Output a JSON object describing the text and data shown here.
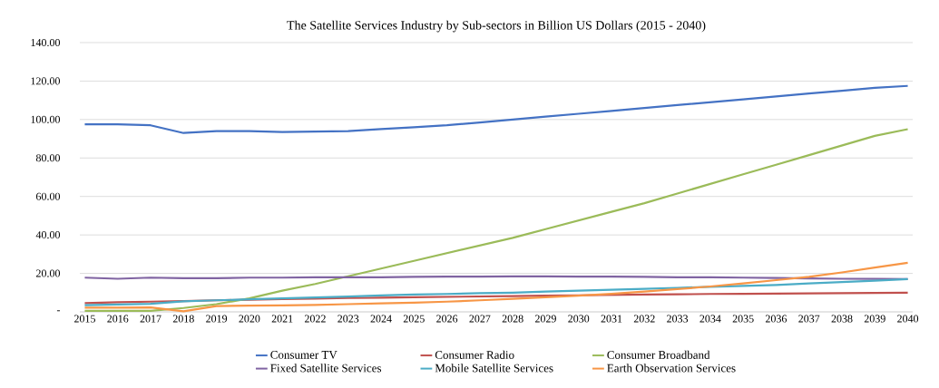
{
  "chart_data": {
    "type": "line",
    "title": "The Satellite Services Industry by Sub-sectors in Billion US Dollars (2015 - 2040)",
    "categories": [
      "2015",
      "2016",
      "2017",
      "2018",
      "2019",
      "2020",
      "2021",
      "2022",
      "2023",
      "2024",
      "2025",
      "2026",
      "2027",
      "2028",
      "2029",
      "2030",
      "2031",
      "2032",
      "2033",
      "2034",
      "2035",
      "2036",
      "2037",
      "2038",
      "2039",
      "2040"
    ],
    "series": [
      {
        "name": "Consumer TV",
        "color": "#4472c4",
        "values": [
          97.5,
          97.5,
          97,
          93,
          94,
          94,
          93.5,
          93.7,
          94,
          95,
          96,
          97,
          98.5,
          100,
          101.5,
          103,
          104.5,
          106,
          107.5,
          109,
          110.5,
          112,
          113.5,
          115,
          116.5,
          117.5
        ]
      },
      {
        "name": "Consumer Radio",
        "color": "#c0504d",
        "values": [
          4.5,
          5,
          5.3,
          5.6,
          6,
          6.3,
          6.6,
          6.9,
          7.2,
          7.4,
          7.6,
          7.8,
          8,
          8.2,
          8.4,
          8.6,
          8.8,
          9,
          9.1,
          9.3,
          9.4,
          9.5,
          9.6,
          9.7,
          9.8,
          10
        ]
      },
      {
        "name": "Consumer Broadband",
        "color": "#9bbb59",
        "values": [
          0.5,
          0.5,
          0.5,
          2,
          4,
          7,
          11,
          14.5,
          18.5,
          22.5,
          26.5,
          30.5,
          34.5,
          38.5,
          43,
          47.5,
          52,
          56.5,
          61.5,
          66.5,
          71.5,
          76.5,
          81.5,
          86.5,
          91.5,
          95
        ]
      },
      {
        "name": "Fixed Satellite Services",
        "color": "#8064a2",
        "values": [
          17.8,
          17.2,
          17.8,
          17.5,
          17.5,
          17.8,
          17.8,
          18,
          18,
          18,
          18.2,
          18.3,
          18.3,
          18.4,
          18.4,
          18.3,
          18.3,
          18.2,
          18,
          18,
          17.8,
          17.6,
          17.4,
          17.2,
          17.1,
          17
        ]
      },
      {
        "name": "Mobile Satellite Services",
        "color": "#4bacc6",
        "values": [
          3.5,
          3.8,
          4.2,
          5.5,
          6,
          6.5,
          7,
          7.5,
          8,
          8.5,
          9,
          9.3,
          9.7,
          10,
          10.5,
          11,
          11.5,
          12,
          12.5,
          13,
          13.5,
          14,
          14.8,
          15.5,
          16.2,
          17
        ]
      },
      {
        "name": "Earth Observation Services",
        "color": "#f79646",
        "values": [
          2.2,
          2.2,
          2.3,
          0.3,
          3,
          3.2,
          3.4,
          3.6,
          4,
          4.4,
          4.8,
          5.3,
          6,
          6.8,
          7.6,
          8.4,
          9.4,
          10.5,
          11.8,
          13.2,
          14.8,
          16.5,
          18.2,
          20.5,
          23,
          25.5
        ]
      }
    ],
    "ylim": [
      0,
      140
    ],
    "yticks": [
      {
        "value": 0,
        "label": "-"
      },
      {
        "value": 20,
        "label": "20.00"
      },
      {
        "value": 40,
        "label": "40.00"
      },
      {
        "value": 60,
        "label": "60.00"
      },
      {
        "value": 80,
        "label": "80.00"
      },
      {
        "value": 100,
        "label": "100.00"
      },
      {
        "value": 120,
        "label": "120.00"
      },
      {
        "value": 140,
        "label": "140.00"
      }
    ],
    "grid": "y",
    "legend": "bottom",
    "marker": "none",
    "line_style": "solid"
  }
}
